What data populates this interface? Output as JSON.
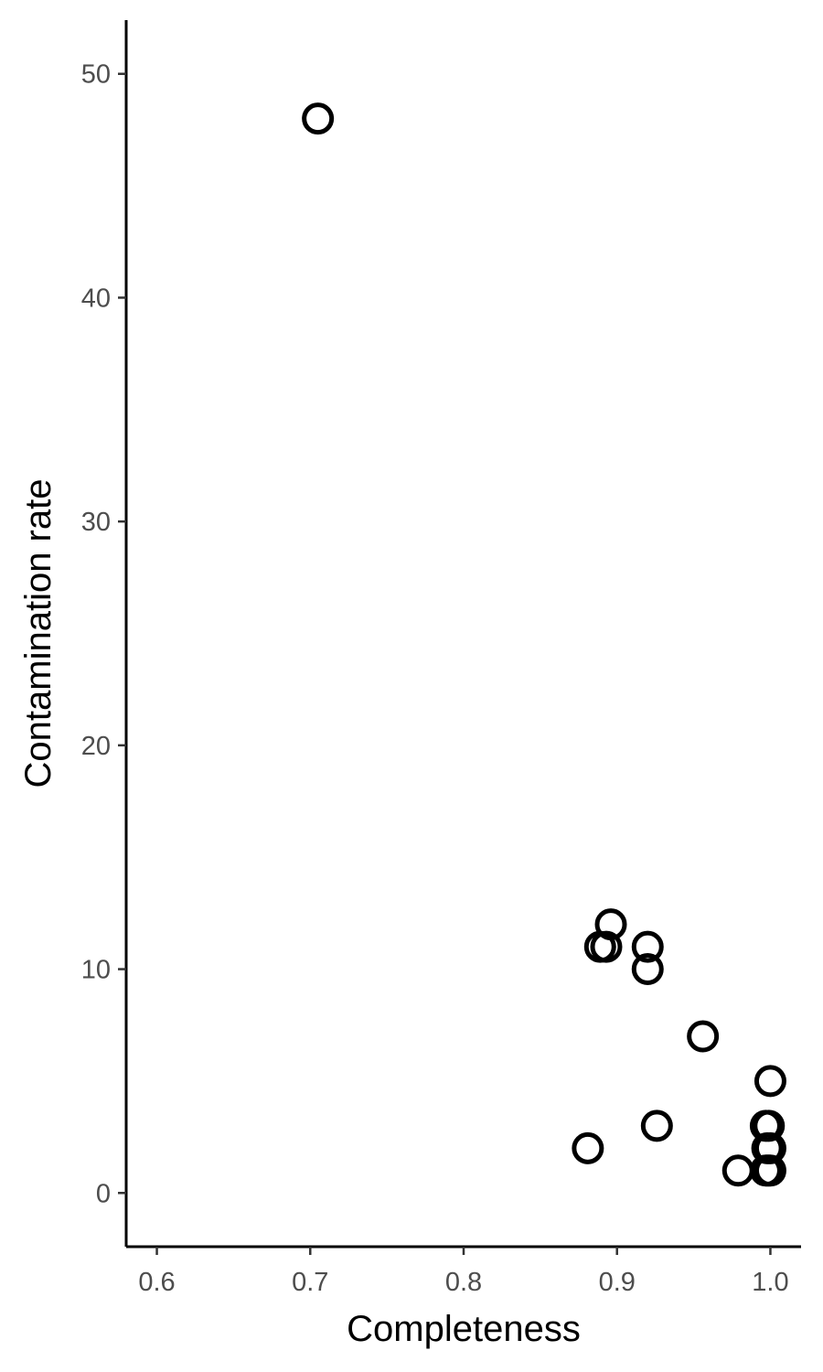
{
  "chart_data": {
    "type": "scatter",
    "title": "",
    "xlabel": "Completeness",
    "ylabel": "Contamination rate",
    "xlim": [
      0.58,
      1.02
    ],
    "ylim": [
      -2.4,
      52.4
    ],
    "x_ticks": [
      0.6,
      0.7,
      0.8,
      0.9,
      1.0
    ],
    "x_tick_labels": [
      "0.6",
      "0.7",
      "0.8",
      "0.9",
      "1.0"
    ],
    "y_ticks": [
      0,
      10,
      20,
      30,
      40,
      50
    ],
    "y_tick_labels": [
      "0",
      "10",
      "20",
      "30",
      "40",
      "50"
    ],
    "grid": false,
    "legend": "none",
    "marker": "open-circle",
    "marker_color": "#000000",
    "points": [
      {
        "x": 0.705,
        "y": 48
      },
      {
        "x": 0.896,
        "y": 12
      },
      {
        "x": 0.889,
        "y": 11
      },
      {
        "x": 0.893,
        "y": 11
      },
      {
        "x": 0.92,
        "y": 11
      },
      {
        "x": 0.92,
        "y": 10
      },
      {
        "x": 0.956,
        "y": 7
      },
      {
        "x": 1.0,
        "y": 5
      },
      {
        "x": 0.926,
        "y": 3
      },
      {
        "x": 0.997,
        "y": 3
      },
      {
        "x": 0.999,
        "y": 3
      },
      {
        "x": 0.881,
        "y": 2
      },
      {
        "x": 0.998,
        "y": 2
      },
      {
        "x": 1.0,
        "y": 2
      },
      {
        "x": 0.979,
        "y": 1
      },
      {
        "x": 0.997,
        "y": 1
      },
      {
        "x": 0.998,
        "y": 1
      },
      {
        "x": 0.999,
        "y": 1
      },
      {
        "x": 1.0,
        "y": 1
      }
    ]
  }
}
